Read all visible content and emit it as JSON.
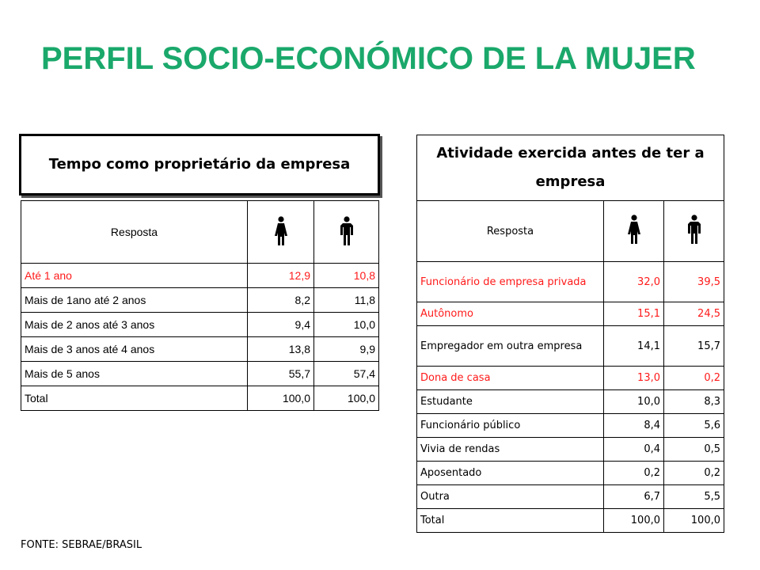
{
  "title": "PERFIL SOCIO-ECONÓMICO DE LA MUJER",
  "table_left": {
    "caption": "Tempo como proprietário da empresa",
    "header": "Resposta",
    "rows": [
      {
        "label": "Até 1 ano",
        "female": "12,9",
        "male": "10,8",
        "highlight": true
      },
      {
        "label": "Mais de 1ano até 2 anos",
        "female": "8,2",
        "male": "11,8",
        "highlight": false
      },
      {
        "label": "Mais de 2 anos até 3 anos",
        "female": "9,4",
        "male": "10,0",
        "highlight": false
      },
      {
        "label": "Mais de 3 anos até 4 anos",
        "female": "13,8",
        "male": "9,9",
        "highlight": false
      },
      {
        "label": "Mais de 5 anos",
        "female": "55,7",
        "male": "57,4",
        "highlight": false
      },
      {
        "label": "Total",
        "female": "100,0",
        "male": "100,0",
        "highlight": false
      }
    ]
  },
  "table_right": {
    "caption": "Atividade exercida antes de ter a empresa",
    "header": "Resposta",
    "rows": [
      {
        "label": "Funcionário de empresa privada",
        "female": "32,0",
        "male": "39,5",
        "highlight": true
      },
      {
        "label": "Autônomo",
        "female": "15,1",
        "male": "24,5",
        "highlight": true
      },
      {
        "label": "Empregador em outra empresa",
        "female": "14,1",
        "male": "15,7",
        "highlight": false
      },
      {
        "label": "Dona de casa",
        "female": "13,0",
        "male": "0,2",
        "highlight": true
      },
      {
        "label": "Estudante",
        "female": "10,0",
        "male": "8,3",
        "highlight": false
      },
      {
        "label": "Funcionário público",
        "female": "8,4",
        "male": "5,6",
        "highlight": false
      },
      {
        "label": "Vivia de rendas",
        "female": "0,4",
        "male": "0,5",
        "highlight": false
      },
      {
        "label": "Aposentado",
        "female": "0,2",
        "male": "0,2",
        "highlight": false
      },
      {
        "label": "Outra",
        "female": "6,7",
        "male": "5,5",
        "highlight": false
      },
      {
        "label": "Total",
        "female": "100,0",
        "male": "100,0",
        "highlight": false
      }
    ]
  },
  "source": "FONTE: SEBRAE/BRASIL",
  "colors": {
    "title": "#1aa86b",
    "highlight": "#ff1a1a"
  },
  "icons": {
    "female": "female-icon",
    "male": "male-icon"
  }
}
